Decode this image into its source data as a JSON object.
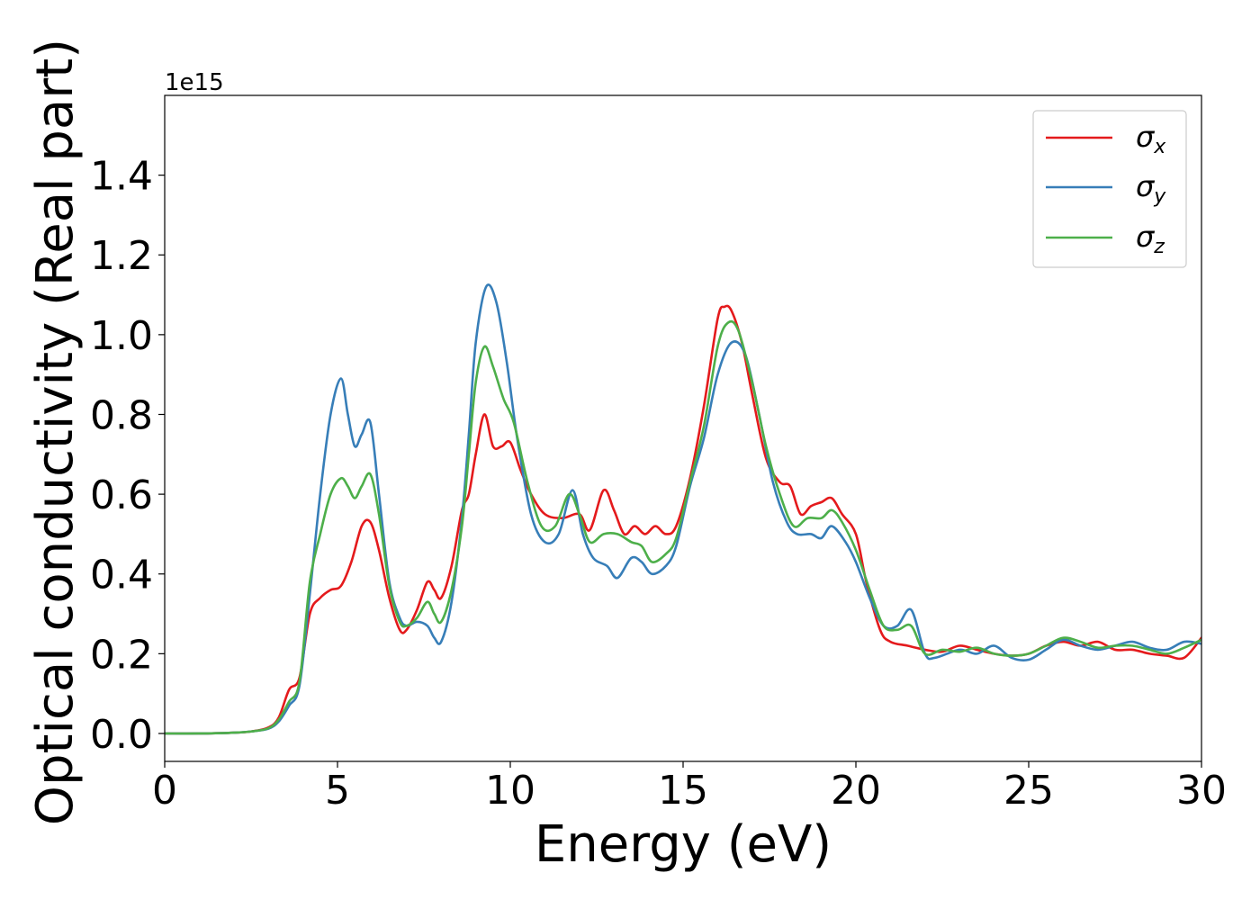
{
  "chart_data": {
    "type": "line",
    "title": "",
    "xlabel": "Energy (eV)",
    "ylabel": "Optical conductivity (Real part)",
    "offset_label": "1e15",
    "xlim": [
      0,
      30
    ],
    "ylim": [
      -0.07,
      1.6
    ],
    "xticks": [
      0,
      5,
      10,
      15,
      20,
      25,
      30
    ],
    "yticks": [
      0.0,
      0.2,
      0.4,
      0.6,
      0.8,
      1.0,
      1.2,
      1.4
    ],
    "xtick_labels": [
      "0",
      "5",
      "10",
      "15",
      "20",
      "25",
      "30"
    ],
    "ytick_labels": [
      "0.0",
      "0.2",
      "0.4",
      "0.6",
      "0.8",
      "1.0",
      "1.2",
      "1.4"
    ],
    "grid": false,
    "legend": "top-right",
    "series": [
      {
        "name": "σx",
        "base": "σ",
        "sub": "x",
        "color": "#e41a1c",
        "x": [
          0,
          1,
          2,
          2.5,
          3,
          3.3,
          3.6,
          3.9,
          4.2,
          4.5,
          4.8,
          5.1,
          5.4,
          5.7,
          5.95,
          6.2,
          6.5,
          6.8,
          7.0,
          7.3,
          7.6,
          7.8,
          8.0,
          8.3,
          8.6,
          8.8,
          9.0,
          9.25,
          9.5,
          9.75,
          10.0,
          10.3,
          10.6,
          11.0,
          11.5,
          12.0,
          12.3,
          12.7,
          13.0,
          13.3,
          13.6,
          13.9,
          14.2,
          14.5,
          14.8,
          15.2,
          15.6,
          16.0,
          16.2,
          16.4,
          16.7,
          17.0,
          17.4,
          17.8,
          18.1,
          18.4,
          18.7,
          19.0,
          19.3,
          19.6,
          20.0,
          20.3,
          20.7,
          21.0,
          21.5,
          22.0,
          22.5,
          23.0,
          23.5,
          24.0,
          24.5,
          25.0,
          25.5,
          26.0,
          26.5,
          27.0,
          27.5,
          28.0,
          28.5,
          29.0,
          29.5,
          30.0
        ],
        "y": [
          0,
          0,
          0.002,
          0.005,
          0.015,
          0.04,
          0.11,
          0.14,
          0.3,
          0.34,
          0.36,
          0.37,
          0.43,
          0.52,
          0.53,
          0.46,
          0.34,
          0.26,
          0.26,
          0.31,
          0.38,
          0.36,
          0.34,
          0.42,
          0.56,
          0.6,
          0.7,
          0.8,
          0.72,
          0.72,
          0.73,
          0.66,
          0.6,
          0.55,
          0.54,
          0.55,
          0.51,
          0.61,
          0.56,
          0.5,
          0.52,
          0.5,
          0.52,
          0.5,
          0.52,
          0.64,
          0.82,
          1.04,
          1.07,
          1.06,
          0.98,
          0.85,
          0.69,
          0.63,
          0.62,
          0.55,
          0.57,
          0.58,
          0.59,
          0.55,
          0.5,
          0.38,
          0.26,
          0.23,
          0.22,
          0.21,
          0.205,
          0.22,
          0.21,
          0.2,
          0.195,
          0.2,
          0.22,
          0.23,
          0.22,
          0.23,
          0.21,
          0.21,
          0.2,
          0.195,
          0.19,
          0.24
        ]
      },
      {
        "name": "σy",
        "base": "σ",
        "sub": "y",
        "color": "#377eb8",
        "x": [
          0,
          1,
          2,
          2.5,
          3,
          3.3,
          3.6,
          3.9,
          4.2,
          4.5,
          4.8,
          5.1,
          5.3,
          5.5,
          5.7,
          5.95,
          6.2,
          6.5,
          6.8,
          7.0,
          7.3,
          7.6,
          7.8,
          8.0,
          8.3,
          8.6,
          8.8,
          9.0,
          9.3,
          9.6,
          9.9,
          10.2,
          10.6,
          11.0,
          11.4,
          11.8,
          12.1,
          12.4,
          12.8,
          13.1,
          13.5,
          13.8,
          14.1,
          14.5,
          14.8,
          15.2,
          15.6,
          16.0,
          16.4,
          16.8,
          17.2,
          17.6,
          18.0,
          18.3,
          18.7,
          19.0,
          19.3,
          19.7,
          20.0,
          20.4,
          20.8,
          21.2,
          21.6,
          22.0,
          22.3,
          23.0,
          23.5,
          24.0,
          24.5,
          25.0,
          25.5,
          26.0,
          26.5,
          27.0,
          27.5,
          28.0,
          28.5,
          29.0,
          29.5,
          30.0
        ],
        "y": [
          0,
          0,
          0.002,
          0.005,
          0.012,
          0.03,
          0.07,
          0.12,
          0.35,
          0.6,
          0.8,
          0.89,
          0.8,
          0.72,
          0.75,
          0.78,
          0.6,
          0.38,
          0.29,
          0.27,
          0.28,
          0.27,
          0.24,
          0.23,
          0.33,
          0.54,
          0.75,
          0.98,
          1.12,
          1.08,
          0.93,
          0.74,
          0.55,
          0.48,
          0.5,
          0.61,
          0.5,
          0.44,
          0.42,
          0.39,
          0.44,
          0.43,
          0.4,
          0.42,
          0.47,
          0.62,
          0.74,
          0.9,
          0.98,
          0.95,
          0.8,
          0.63,
          0.53,
          0.5,
          0.5,
          0.49,
          0.52,
          0.48,
          0.43,
          0.34,
          0.27,
          0.27,
          0.31,
          0.2,
          0.19,
          0.21,
          0.2,
          0.22,
          0.19,
          0.185,
          0.21,
          0.235,
          0.22,
          0.21,
          0.22,
          0.23,
          0.215,
          0.21,
          0.23,
          0.225
        ]
      },
      {
        "name": "σz",
        "base": "σ",
        "sub": "z",
        "color": "#4daf4a",
        "x": [
          0,
          1,
          2,
          2.5,
          3,
          3.3,
          3.6,
          3.9,
          4.2,
          4.5,
          4.8,
          5.1,
          5.3,
          5.5,
          5.7,
          5.95,
          6.2,
          6.5,
          6.8,
          7.0,
          7.3,
          7.6,
          7.8,
          8.0,
          8.3,
          8.6,
          8.8,
          9.0,
          9.25,
          9.5,
          9.8,
          10.1,
          10.5,
          10.9,
          11.3,
          11.7,
          12.0,
          12.3,
          12.7,
          13.1,
          13.5,
          13.8,
          14.1,
          14.5,
          14.8,
          15.2,
          15.6,
          16.0,
          16.3,
          16.6,
          17.0,
          17.4,
          17.8,
          18.2,
          18.6,
          19.0,
          19.3,
          19.6,
          20.0,
          20.4,
          20.8,
          21.2,
          21.6,
          22.0,
          22.5,
          23.0,
          23.5,
          24.0,
          24.5,
          25.0,
          25.5,
          26.0,
          26.5,
          27.0,
          27.5,
          28.0,
          28.5,
          29.0,
          29.5,
          30.0
        ],
        "y": [
          0,
          0,
          0.002,
          0.005,
          0.013,
          0.035,
          0.08,
          0.13,
          0.38,
          0.5,
          0.6,
          0.64,
          0.62,
          0.59,
          0.62,
          0.65,
          0.55,
          0.37,
          0.28,
          0.27,
          0.29,
          0.33,
          0.3,
          0.28,
          0.36,
          0.52,
          0.7,
          0.88,
          0.97,
          0.92,
          0.84,
          0.78,
          0.63,
          0.52,
          0.52,
          0.6,
          0.55,
          0.48,
          0.5,
          0.5,
          0.48,
          0.47,
          0.43,
          0.45,
          0.49,
          0.63,
          0.77,
          0.97,
          1.03,
          1.01,
          0.88,
          0.72,
          0.6,
          0.52,
          0.54,
          0.54,
          0.56,
          0.53,
          0.46,
          0.36,
          0.27,
          0.26,
          0.27,
          0.2,
          0.21,
          0.205,
          0.215,
          0.2,
          0.195,
          0.2,
          0.22,
          0.24,
          0.23,
          0.215,
          0.22,
          0.22,
          0.21,
          0.2,
          0.215,
          0.235
        ]
      }
    ]
  }
}
